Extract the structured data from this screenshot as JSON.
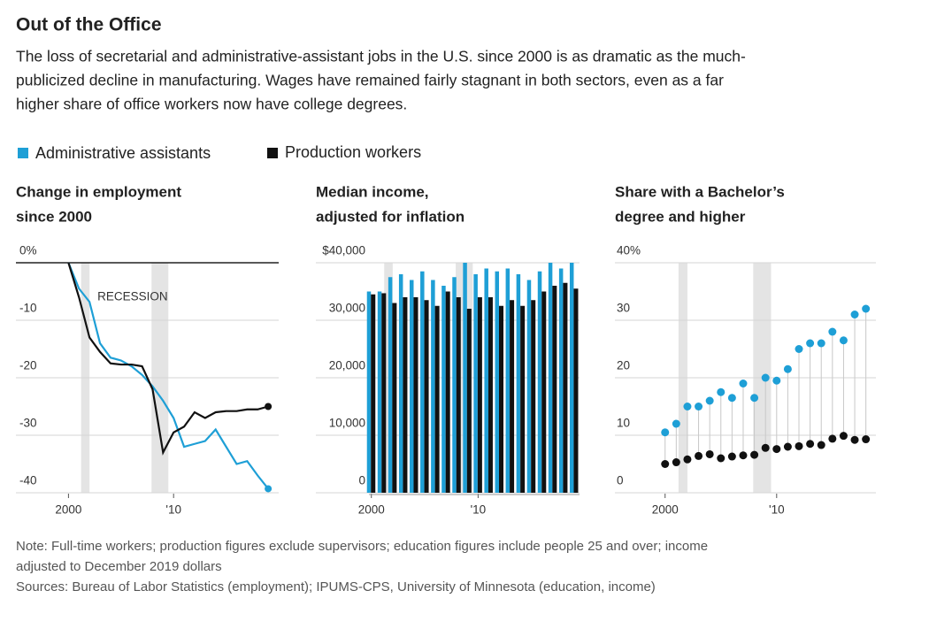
{
  "title": "Out of the Office",
  "subtitle": [
    "The loss of secretarial and administrative-assistant jobs in the U.S. since 2000 is as dramatic as the much-",
    "publicized decline in manufacturing. Wages have remained fairly stagnant in both sectors, even as a far",
    "higher share of office workers now have college degrees."
  ],
  "note": [
    "Note: Full-time workers; production figures exclude supervisors; education figures include people 25 and over; income",
    "adjusted to December 2019 dollars"
  ],
  "sources": "Sources: Bureau of Labor Statistics (employment); IPUMS-CPS, University of Minnesota (education, income)",
  "recessions": [
    [
      2001.2,
      2002.0
    ],
    [
      2007.9,
      2009.5
    ]
  ],
  "chart_data": [
    {
      "type": "line",
      "title": [
        "Change in employment",
        "since 2000"
      ],
      "annotation": "RECESSION",
      "x": [
        2000,
        2001,
        2002,
        2003,
        2004,
        2005,
        2006,
        2007,
        2008,
        2009,
        2010,
        2011,
        2012,
        2013,
        2014,
        2015,
        2016,
        2017,
        2018,
        2019
      ],
      "series": [
        {
          "name": "Administrative assistants",
          "color": "#1e9fd6",
          "values": [
            0,
            -4.5,
            -6.8,
            -14,
            -16.5,
            -17,
            -18,
            -19.5,
            -21.5,
            -24,
            -27,
            -32,
            -31.5,
            -31,
            -29,
            -32,
            -35,
            -34.5,
            -37,
            -39.3
          ]
        },
        {
          "name": "Production workers",
          "color": "#111111",
          "values": [
            0,
            -6,
            -13,
            -15.5,
            -17.5,
            -17.7,
            -17.7,
            -18,
            -22,
            -33,
            -29.5,
            -28.5,
            -26,
            -27,
            -26,
            -25.8,
            -25.8,
            -25.5,
            -25.5,
            -25
          ]
        }
      ],
      "xlim": [
        1995,
        2020
      ],
      "xticks": [
        2000,
        {
          "value": 2010,
          "label": "'10"
        }
      ],
      "ylim": [
        -40,
        0
      ],
      "yticks": [
        {
          "value": 0,
          "label": "0%"
        },
        -10,
        -20,
        -30,
        -40
      ],
      "grid": true
    },
    {
      "type": "bar",
      "title": [
        "Median income,",
        "adjusted for inflation"
      ],
      "x": [
        2000,
        2001,
        2002,
        2003,
        2004,
        2005,
        2006,
        2007,
        2008,
        2009,
        2010,
        2011,
        2012,
        2013,
        2014,
        2015,
        2016,
        2017,
        2018,
        2019
      ],
      "series": [
        {
          "name": "Administrative assistants",
          "color": "#1e9fd6",
          "values": [
            35000,
            35000,
            37500,
            38000,
            37000,
            38500,
            37000,
            36000,
            37500,
            40000,
            38000,
            39000,
            38500,
            39000,
            38000,
            37000,
            38500,
            40000,
            39000,
            40000
          ]
        },
        {
          "name": "Production workers",
          "color": "#111111",
          "values": [
            34500,
            34700,
            33000,
            34000,
            34000,
            33500,
            32500,
            35000,
            34000,
            32000,
            34000,
            34000,
            32500,
            33500,
            32500,
            33500,
            35000,
            36000,
            36500,
            35500
          ]
        }
      ],
      "xlim": [
        1994.8,
        2019.5
      ],
      "xticks": [
        2000,
        {
          "value": 2010,
          "label": "'10"
        }
      ],
      "ylim": [
        0,
        40000
      ],
      "yticks": [
        {
          "value": 40000,
          "label": "$40,000"
        },
        {
          "value": 30000,
          "label": "30,000"
        },
        {
          "value": 20000,
          "label": "20,000"
        },
        {
          "value": 10000,
          "label": "10,000"
        },
        0
      ],
      "grid": true
    },
    {
      "type": "scatter",
      "title": [
        "Share with a Bachelor’s",
        "degree and higher"
      ],
      "x": [
        2000,
        2001,
        2002,
        2003,
        2004,
        2005,
        2006,
        2007,
        2008,
        2009,
        2010,
        2011,
        2012,
        2013,
        2014,
        2015,
        2016,
        2017,
        2018
      ],
      "series": [
        {
          "name": "Administrative assistants",
          "color": "#1e9fd6",
          "values": [
            10.5,
            12,
            15,
            15,
            16,
            17.5,
            16.5,
            19,
            16.5,
            20,
            19.5,
            21.5,
            25,
            26,
            26,
            28,
            26.5,
            31,
            32
          ]
        },
        {
          "name": "Production workers",
          "color": "#111111",
          "values": [
            5,
            5.3,
            5.8,
            6.4,
            6.7,
            6,
            6.3,
            6.5,
            6.6,
            7.8,
            7.6,
            8,
            8.1,
            8.5,
            8.3,
            9.4,
            9.9,
            9.2,
            9.3
          ]
        }
      ],
      "xlim": [
        1995.5,
        2018.9
      ],
      "xticks": [
        2000,
        {
          "value": 2010,
          "label": "'10"
        }
      ],
      "ylim": [
        0,
        40
      ],
      "yticks": [
        {
          "value": 40,
          "label": "40%"
        },
        30,
        20,
        10,
        0
      ],
      "grid": true
    }
  ]
}
